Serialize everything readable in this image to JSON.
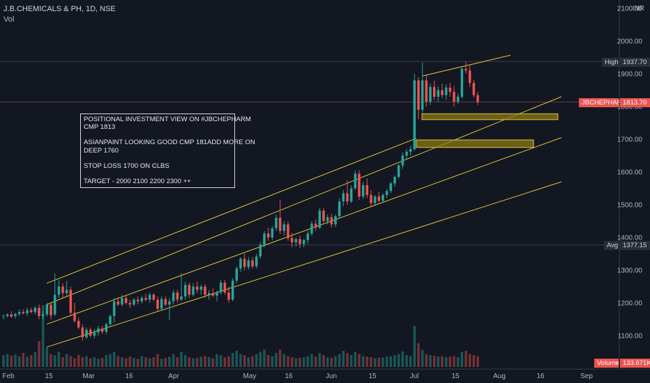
{
  "header": {
    "symbol_line": "J.B.CHEMICALS & PH, 1D, NSE",
    "volume_label": "Vol"
  },
  "price_axis": {
    "currency": "INR",
    "ticks": [
      "2100.00",
      "2000.00",
      "1900.00",
      "1800.00",
      "1700.00",
      "1600.00",
      "1500.00",
      "1400.00",
      "1300.00",
      "1200.00",
      "1100.00"
    ]
  },
  "time_axis": {
    "ticks": [
      "Feb",
      "15",
      "Mar",
      "16",
      "Apr",
      "May",
      "16",
      "Jun",
      "15",
      "Jul",
      "15",
      "Aug",
      "16",
      "Sep"
    ]
  },
  "markers": {
    "high": {
      "label": "High",
      "value": "1937.70"
    },
    "last": {
      "label": "JBCHEPHARM",
      "value": "1813.70"
    },
    "avg": {
      "label": "Avg",
      "value": "1377.15"
    },
    "volume": {
      "label": "Volume",
      "value": "133.671K"
    }
  },
  "note": {
    "line1": "POSITIONAL INVESTMENT VIEW ON #JBCHEPHARM",
    "line2": "CMP 1813",
    "line3": "ASIANPAINT LOOKING GOOD CMP 181ADD MORE ON",
    "line4": "DEEP 1760",
    "line5": "STOP LOSS 1700 ON CLBS",
    "line6": "TARGET - 2000 2100 2200 2300 ++"
  },
  "colors": {
    "up": "#26a69a",
    "down": "#ef5350",
    "bg": "#131722",
    "trend": "#e0c43a",
    "zone": "#8a7a18"
  },
  "chart_data": {
    "type": "candlestick",
    "title": "J.B.CHEMICALS & PH, 1D, NSE",
    "ylim": [
      1050,
      2130
    ],
    "x_range": [
      "Feb",
      "Sep"
    ],
    "candles": [
      {
        "o": 1160,
        "h": 1163,
        "l": 1150,
        "c": 1162
      },
      {
        "o": 1160,
        "h": 1168,
        "l": 1155,
        "c": 1165
      },
      {
        "o": 1165,
        "h": 1175,
        "l": 1155,
        "c": 1158
      },
      {
        "o": 1160,
        "h": 1170,
        "l": 1152,
        "c": 1166
      },
      {
        "o": 1166,
        "h": 1180,
        "l": 1160,
        "c": 1172
      },
      {
        "o": 1172,
        "h": 1180,
        "l": 1165,
        "c": 1168
      },
      {
        "o": 1168,
        "h": 1185,
        "l": 1160,
        "c": 1178
      },
      {
        "o": 1178,
        "h": 1185,
        "l": 1168,
        "c": 1172
      },
      {
        "o": 1172,
        "h": 1190,
        "l": 1165,
        "c": 1185
      },
      {
        "o": 1185,
        "h": 1195,
        "l": 1150,
        "c": 1160
      },
      {
        "o": 1160,
        "h": 1175,
        "l": 1150,
        "c": 1165
      },
      {
        "o": 1165,
        "h": 1200,
        "l": 1158,
        "c": 1195
      },
      {
        "o": 1195,
        "h": 1200,
        "l": 1150,
        "c": 1162
      },
      {
        "o": 1165,
        "h": 1290,
        "l": 1160,
        "c": 1225
      },
      {
        "o": 1225,
        "h": 1270,
        "l": 1215,
        "c": 1250
      },
      {
        "o": 1250,
        "h": 1260,
        "l": 1215,
        "c": 1230
      },
      {
        "o": 1230,
        "h": 1268,
        "l": 1222,
        "c": 1240
      },
      {
        "o": 1240,
        "h": 1250,
        "l": 1160,
        "c": 1170
      },
      {
        "o": 1170,
        "h": 1200,
        "l": 1140,
        "c": 1145
      },
      {
        "o": 1145,
        "h": 1155,
        "l": 1120,
        "c": 1125
      },
      {
        "o": 1125,
        "h": 1135,
        "l": 1085,
        "c": 1095
      },
      {
        "o": 1095,
        "h": 1125,
        "l": 1090,
        "c": 1118
      },
      {
        "o": 1118,
        "h": 1125,
        "l": 1095,
        "c": 1100
      },
      {
        "o": 1100,
        "h": 1120,
        "l": 1092,
        "c": 1110
      },
      {
        "o": 1110,
        "h": 1130,
        "l": 1100,
        "c": 1122
      },
      {
        "o": 1122,
        "h": 1130,
        "l": 1105,
        "c": 1112
      },
      {
        "o": 1112,
        "h": 1140,
        "l": 1105,
        "c": 1135
      },
      {
        "o": 1135,
        "h": 1165,
        "l": 1128,
        "c": 1160
      },
      {
        "o": 1160,
        "h": 1215,
        "l": 1140,
        "c": 1205
      },
      {
        "o": 1205,
        "h": 1218,
        "l": 1190,
        "c": 1195
      },
      {
        "o": 1195,
        "h": 1225,
        "l": 1190,
        "c": 1215
      },
      {
        "o": 1215,
        "h": 1222,
        "l": 1195,
        "c": 1200
      },
      {
        "o": 1200,
        "h": 1210,
        "l": 1185,
        "c": 1195
      },
      {
        "o": 1195,
        "h": 1215,
        "l": 1190,
        "c": 1210
      },
      {
        "o": 1210,
        "h": 1220,
        "l": 1195,
        "c": 1205
      },
      {
        "o": 1205,
        "h": 1222,
        "l": 1198,
        "c": 1215
      },
      {
        "o": 1215,
        "h": 1228,
        "l": 1205,
        "c": 1210
      },
      {
        "o": 1210,
        "h": 1232,
        "l": 1200,
        "c": 1225
      },
      {
        "o": 1225,
        "h": 1230,
        "l": 1205,
        "c": 1210
      },
      {
        "o": 1210,
        "h": 1220,
        "l": 1175,
        "c": 1182
      },
      {
        "o": 1182,
        "h": 1220,
        "l": 1178,
        "c": 1212
      },
      {
        "o": 1212,
        "h": 1220,
        "l": 1190,
        "c": 1195
      },
      {
        "o": 1195,
        "h": 1215,
        "l": 1148,
        "c": 1205
      },
      {
        "o": 1205,
        "h": 1240,
        "l": 1195,
        "c": 1232
      },
      {
        "o": 1232,
        "h": 1240,
        "l": 1200,
        "c": 1210
      },
      {
        "o": 1210,
        "h": 1290,
        "l": 1205,
        "c": 1220
      },
      {
        "o": 1220,
        "h": 1265,
        "l": 1210,
        "c": 1255
      },
      {
        "o": 1255,
        "h": 1262,
        "l": 1215,
        "c": 1225
      },
      {
        "o": 1225,
        "h": 1260,
        "l": 1220,
        "c": 1250
      },
      {
        "o": 1250,
        "h": 1265,
        "l": 1230,
        "c": 1240
      },
      {
        "o": 1240,
        "h": 1255,
        "l": 1225,
        "c": 1250
      },
      {
        "o": 1250,
        "h": 1258,
        "l": 1215,
        "c": 1225
      },
      {
        "o": 1225,
        "h": 1240,
        "l": 1210,
        "c": 1230
      },
      {
        "o": 1230,
        "h": 1245,
        "l": 1218,
        "c": 1222
      },
      {
        "o": 1222,
        "h": 1238,
        "l": 1205,
        "c": 1232
      },
      {
        "o": 1232,
        "h": 1270,
        "l": 1225,
        "c": 1262
      },
      {
        "o": 1262,
        "h": 1270,
        "l": 1225,
        "c": 1232
      },
      {
        "o": 1232,
        "h": 1250,
        "l": 1200,
        "c": 1210
      },
      {
        "o": 1210,
        "h": 1275,
        "l": 1205,
        "c": 1268
      },
      {
        "o": 1268,
        "h": 1312,
        "l": 1260,
        "c": 1305
      },
      {
        "o": 1305,
        "h": 1340,
        "l": 1295,
        "c": 1335
      },
      {
        "o": 1335,
        "h": 1350,
        "l": 1300,
        "c": 1310
      },
      {
        "o": 1310,
        "h": 1340,
        "l": 1302,
        "c": 1330
      },
      {
        "o": 1330,
        "h": 1340,
        "l": 1305,
        "c": 1312
      },
      {
        "o": 1312,
        "h": 1350,
        "l": 1305,
        "c": 1342
      },
      {
        "o": 1342,
        "h": 1385,
        "l": 1335,
        "c": 1378
      },
      {
        "o": 1378,
        "h": 1420,
        "l": 1370,
        "c": 1412
      },
      {
        "o": 1412,
        "h": 1430,
        "l": 1390,
        "c": 1400
      },
      {
        "o": 1400,
        "h": 1435,
        "l": 1392,
        "c": 1428
      },
      {
        "o": 1428,
        "h": 1470,
        "l": 1420,
        "c": 1460
      },
      {
        "o": 1460,
        "h": 1515,
        "l": 1410,
        "c": 1420
      },
      {
        "o": 1420,
        "h": 1450,
        "l": 1405,
        "c": 1440
      },
      {
        "o": 1440,
        "h": 1450,
        "l": 1390,
        "c": 1398
      },
      {
        "o": 1398,
        "h": 1415,
        "l": 1370,
        "c": 1385
      },
      {
        "o": 1385,
        "h": 1400,
        "l": 1372,
        "c": 1395
      },
      {
        "o": 1395,
        "h": 1405,
        "l": 1368,
        "c": 1380
      },
      {
        "o": 1380,
        "h": 1395,
        "l": 1370,
        "c": 1392
      },
      {
        "o": 1392,
        "h": 1420,
        "l": 1380,
        "c": 1412
      },
      {
        "o": 1412,
        "h": 1450,
        "l": 1405,
        "c": 1442
      },
      {
        "o": 1442,
        "h": 1455,
        "l": 1420,
        "c": 1430
      },
      {
        "o": 1430,
        "h": 1490,
        "l": 1425,
        "c": 1482
      },
      {
        "o": 1482,
        "h": 1490,
        "l": 1445,
        "c": 1450
      },
      {
        "o": 1450,
        "h": 1470,
        "l": 1440,
        "c": 1462
      },
      {
        "o": 1462,
        "h": 1472,
        "l": 1430,
        "c": 1440
      },
      {
        "o": 1440,
        "h": 1470,
        "l": 1432,
        "c": 1465
      },
      {
        "o": 1465,
        "h": 1520,
        "l": 1458,
        "c": 1510
      },
      {
        "o": 1510,
        "h": 1545,
        "l": 1495,
        "c": 1535
      },
      {
        "o": 1535,
        "h": 1575,
        "l": 1500,
        "c": 1510
      },
      {
        "o": 1510,
        "h": 1560,
        "l": 1505,
        "c": 1550
      },
      {
        "o": 1550,
        "h": 1605,
        "l": 1545,
        "c": 1595
      },
      {
        "o": 1595,
        "h": 1605,
        "l": 1515,
        "c": 1525
      },
      {
        "o": 1525,
        "h": 1570,
        "l": 1518,
        "c": 1560
      },
      {
        "o": 1560,
        "h": 1580,
        "l": 1520,
        "c": 1530
      },
      {
        "o": 1530,
        "h": 1545,
        "l": 1495,
        "c": 1505
      },
      {
        "o": 1505,
        "h": 1530,
        "l": 1500,
        "c": 1525
      },
      {
        "o": 1525,
        "h": 1540,
        "l": 1505,
        "c": 1512
      },
      {
        "o": 1512,
        "h": 1535,
        "l": 1505,
        "c": 1530
      },
      {
        "o": 1530,
        "h": 1548,
        "l": 1520,
        "c": 1542
      },
      {
        "o": 1542,
        "h": 1570,
        "l": 1535,
        "c": 1565
      },
      {
        "o": 1565,
        "h": 1590,
        "l": 1555,
        "c": 1585
      },
      {
        "o": 1585,
        "h": 1625,
        "l": 1580,
        "c": 1620
      },
      {
        "o": 1620,
        "h": 1660,
        "l": 1610,
        "c": 1650
      },
      {
        "o": 1650,
        "h": 1670,
        "l": 1640,
        "c": 1662
      },
      {
        "o": 1662,
        "h": 1680,
        "l": 1650,
        "c": 1670
      },
      {
        "o": 1670,
        "h": 1900,
        "l": 1665,
        "c": 1880
      },
      {
        "o": 1880,
        "h": 1890,
        "l": 1760,
        "c": 1790
      },
      {
        "o": 1790,
        "h": 1935,
        "l": 1780,
        "c": 1880
      },
      {
        "o": 1880,
        "h": 1895,
        "l": 1800,
        "c": 1815
      },
      {
        "o": 1815,
        "h": 1870,
        "l": 1805,
        "c": 1860
      },
      {
        "o": 1860,
        "h": 1880,
        "l": 1820,
        "c": 1830
      },
      {
        "o": 1830,
        "h": 1862,
        "l": 1815,
        "c": 1850
      },
      {
        "o": 1850,
        "h": 1870,
        "l": 1825,
        "c": 1835
      },
      {
        "o": 1835,
        "h": 1868,
        "l": 1820,
        "c": 1858
      },
      {
        "o": 1858,
        "h": 1872,
        "l": 1830,
        "c": 1845
      },
      {
        "o": 1845,
        "h": 1862,
        "l": 1800,
        "c": 1815
      },
      {
        "o": 1815,
        "h": 1840,
        "l": 1808,
        "c": 1830
      },
      {
        "o": 1830,
        "h": 1920,
        "l": 1825,
        "c": 1915
      },
      {
        "o": 1915,
        "h": 1937.7,
        "l": 1900,
        "c": 1910
      },
      {
        "o": 1910,
        "h": 1925,
        "l": 1860,
        "c": 1872
      },
      {
        "o": 1872,
        "h": 1882,
        "l": 1828,
        "c": 1835
      },
      {
        "o": 1835,
        "h": 1845,
        "l": 1805,
        "c": 1813.7
      }
    ],
    "volume": [
      55,
      60,
      52,
      58,
      50,
      65,
      48,
      55,
      70,
      120,
      285,
      90,
      60,
      55,
      70,
      45,
      60,
      50,
      40,
      55,
      45,
      50,
      40,
      45,
      38,
      42,
      55,
      60,
      70,
      50,
      45,
      40,
      48,
      42,
      38,
      50,
      45,
      40,
      45,
      60,
      38,
      42,
      48,
      60,
      45,
      70,
      55,
      45,
      40,
      42,
      48,
      50,
      45,
      40,
      60,
      55,
      45,
      50,
      65,
      75,
      60,
      55,
      45,
      50,
      60,
      70,
      80,
      55,
      50,
      65,
      80,
      60,
      50,
      45,
      40,
      42,
      45,
      50,
      60,
      48,
      65,
      55,
      45,
      42,
      50,
      60,
      75,
      65,
      55,
      70,
      60,
      50,
      48,
      45,
      40,
      42,
      44,
      48,
      50,
      55,
      60,
      72,
      55,
      50,
      190,
      110,
      80,
      60,
      55,
      52,
      48,
      50,
      45,
      48,
      50,
      45,
      70,
      75,
      60,
      55,
      50
    ],
    "volume_max": 290,
    "trendlines": [
      {
        "name": "lower-channel-line",
        "from": {
          "x": 67,
          "price": 1065
        },
        "to": {
          "x": 805,
          "price": 1570
        }
      },
      {
        "name": "middle-channel-line",
        "from": {
          "x": 67,
          "price": 1135
        },
        "to": {
          "x": 805,
          "price": 1705
        }
      },
      {
        "name": "upper-channel-line",
        "from": {
          "x": 67,
          "price": 1195
        },
        "to": {
          "x": 805,
          "price": 1830
        }
      },
      {
        "name": "top-channel-line",
        "from": {
          "x": 67,
          "price": 1260
        },
        "to": {
          "x": 597,
          "price": 1703
        }
      },
      {
        "name": "breakout-upper-line",
        "from": {
          "x": 605,
          "price": 1893
        },
        "to": {
          "x": 732,
          "price": 1957
        }
      }
    ],
    "zones": [
      {
        "name": "support-zone-1760",
        "x0": 605,
        "x1": 800,
        "p_top": 1778,
        "p_bottom": 1760
      },
      {
        "name": "support-zone-1700",
        "x0": 597,
        "x1": 765,
        "p_top": 1698,
        "p_bottom": 1675
      }
    ],
    "reference_lines": [
      1937.7,
      1813.7,
      1377.15
    ]
  }
}
